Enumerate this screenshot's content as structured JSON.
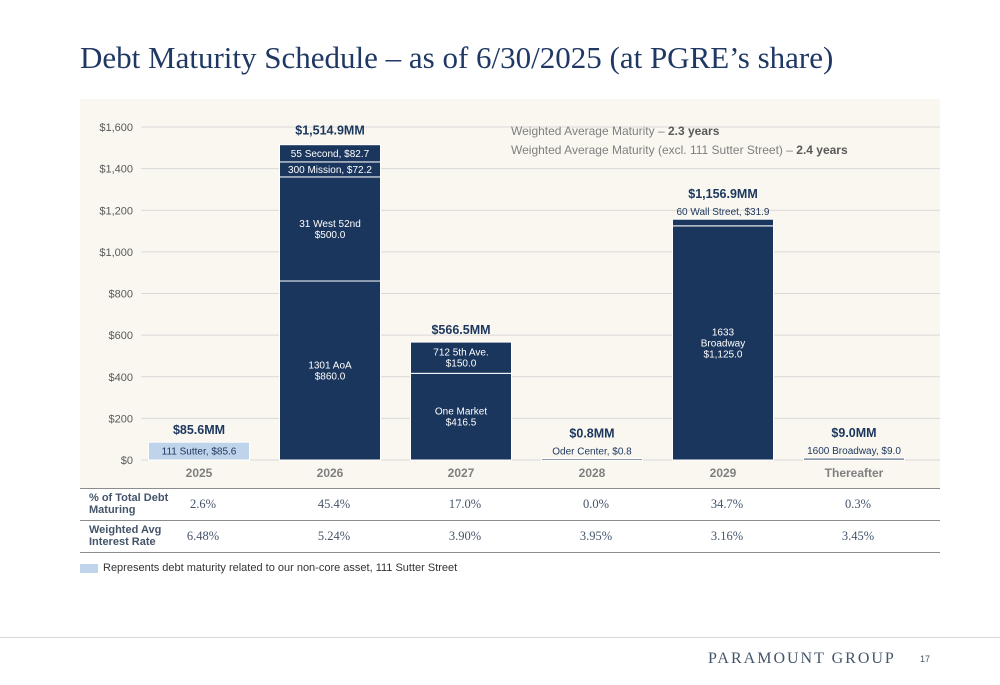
{
  "title": "Debt Maturity Schedule – as of 6/30/2025 (at PGRE’s share)",
  "chart_data": {
    "type": "bar",
    "stacked": true,
    "ylim": [
      0,
      1600
    ],
    "yticks": [
      0,
      200,
      400,
      600,
      800,
      1000,
      1200,
      1400,
      1600
    ],
    "ytick_labels": [
      "$0",
      "$200",
      "$400",
      "$600",
      "$800",
      "$1,000",
      "$1,200",
      "$1,400",
      "$1,600"
    ],
    "grid": true,
    "colors": {
      "core": "#1b365d",
      "non_core": "#bfd3ea",
      "grid": "#d9d9d9",
      "year_label": "#7f7f7f"
    },
    "categories": [
      "2025",
      "2026",
      "2027",
      "2028",
      "2029",
      "Thereafter"
    ],
    "totals": [
      "$85.6MM",
      "$1,514.9MM",
      "$566.5MM",
      "$0.8MM",
      "$1,156.9MM",
      "$9.0MM"
    ],
    "bars": [
      {
        "category": "2025",
        "segments": [
          {
            "label": [
              "111 Sutter, $85.6"
            ],
            "value": 85.6,
            "non_core": true
          }
        ]
      },
      {
        "category": "2026",
        "segments": [
          {
            "label": [
              "1301 AoA",
              "$860.0"
            ],
            "value": 860.0
          },
          {
            "label": [
              "31 West 52nd",
              "$500.0"
            ],
            "value": 500.0
          },
          {
            "label": [
              "300 Mission, $72.2"
            ],
            "value": 72.2
          },
          {
            "label": [
              "55 Second, $82.7"
            ],
            "value": 82.7
          }
        ]
      },
      {
        "category": "2027",
        "segments": [
          {
            "label": [
              "One Market",
              "$416.5"
            ],
            "value": 416.5
          },
          {
            "label": [
              "712 5th Ave.",
              "$150.0"
            ],
            "value": 150.0
          }
        ]
      },
      {
        "category": "2028",
        "segments": [
          {
            "label": [
              "Oder Center, $0.8"
            ],
            "value": 0.8,
            "label_above": true
          }
        ]
      },
      {
        "category": "2029",
        "segments": [
          {
            "label": [
              "1633",
              "Broadway",
              "$1,125.0"
            ],
            "value": 1125.0
          },
          {
            "label": [
              "60 Wall Street, $31.9"
            ],
            "value": 31.9,
            "label_above": true
          }
        ]
      },
      {
        "category": "Thereafter",
        "segments": [
          {
            "label": [
              "1600 Broadway, $9.0"
            ],
            "value": 9.0,
            "label_above": true
          }
        ]
      }
    ],
    "annotations": [
      {
        "text": "Weighted Average Maturity – ",
        "bold": "2.3 years"
      },
      {
        "text": "Weighted Average Maturity (excl. 111 Sutter Street) – ",
        "bold": "2.4 years"
      }
    ]
  },
  "table": {
    "rows": [
      {
        "label": [
          "% of Total Debt",
          "Maturing"
        ],
        "values": [
          "2.6%",
          "45.4%",
          "17.0%",
          "0.0%",
          "34.7%",
          "0.3%"
        ]
      },
      {
        "label": [
          "Weighted Avg",
          "Interest Rate"
        ],
        "values": [
          "6.48%",
          "5.24%",
          "3.90%",
          "3.95%",
          "3.16%",
          "3.45%"
        ]
      }
    ]
  },
  "footnote": "Represents debt maturity related to our non-core asset, 111 Sutter Street",
  "footer": {
    "brand": "PARAMOUNT GROUP",
    "page": "17"
  }
}
